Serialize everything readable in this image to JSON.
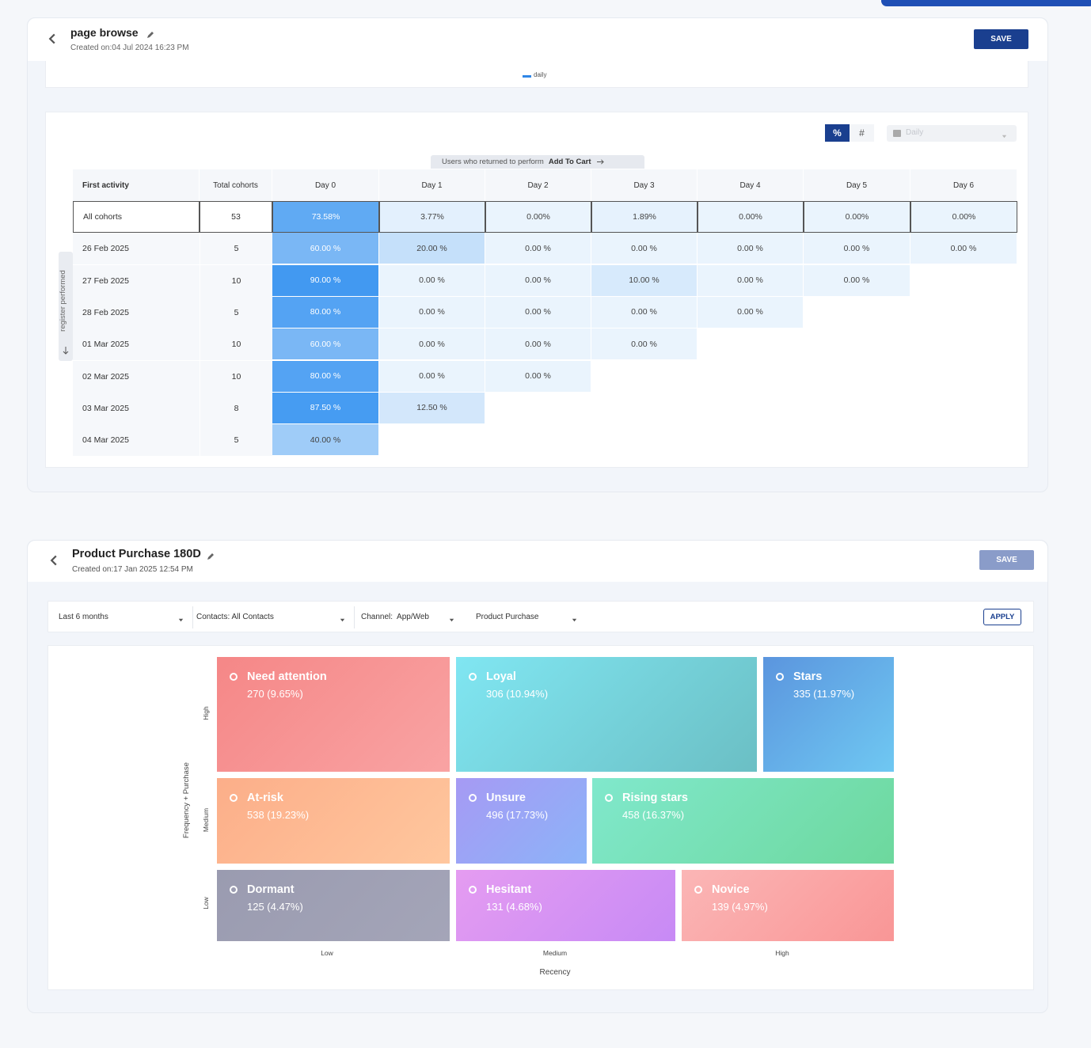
{
  "panel1": {
    "title": "page browse",
    "created": "Created on:04 Jul 2024 16:23 PM",
    "save": "SAVE",
    "legend": "daily",
    "toggle": [
      "%",
      "#"
    ],
    "dropdown": "Daily",
    "banner_prefix": "Users who returned to perform",
    "banner_event": "Add To Cart",
    "side_label": "register performed",
    "table": {
      "headers": [
        "First activity",
        "Total cohorts",
        "Day 0",
        "Day 1",
        "Day 2",
        "Day 3",
        "Day 4",
        "Day 5",
        "Day 6"
      ],
      "rows": [
        [
          "All cohorts",
          "53",
          "73.58%",
          "3.77%",
          "0.00%",
          "1.89%",
          "0.00%",
          "0.00%",
          "0.00%"
        ],
        [
          "26 Feb 2025",
          "5",
          "60.00 %",
          "20.00 %",
          "0.00 %",
          "0.00 %",
          "0.00 %",
          "0.00 %",
          "0.00 %"
        ],
        [
          "27 Feb 2025",
          "10",
          "90.00 %",
          "0.00 %",
          "0.00 %",
          "10.00 %",
          "0.00 %",
          "0.00 %"
        ],
        [
          "28 Feb 2025",
          "5",
          "80.00 %",
          "0.00 %",
          "0.00 %",
          "0.00 %",
          "0.00 %"
        ],
        [
          "01 Mar 2025",
          "10",
          "60.00 %",
          "0.00 %",
          "0.00 %",
          "0.00 %"
        ],
        [
          "02 Mar 2025",
          "10",
          "80.00 %",
          "0.00 %",
          "0.00 %"
        ],
        [
          "03 Mar 2025",
          "8",
          "87.50 %",
          "12.50 %"
        ],
        [
          "04 Mar 2025",
          "5",
          "40.00 %"
        ]
      ]
    }
  },
  "panel2": {
    "title": "Product Purchase 180D",
    "created": "Created on:17 Jan 2025 12:54 PM",
    "save": "SAVE",
    "filters": [
      "Last 6 months",
      "Contacts: All Contacts",
      "Channel:  App/Web",
      "Product Purchase"
    ],
    "apply": "APPLY",
    "y_axis_title": "Frequency + Purchase",
    "y_levels": [
      "High",
      "Medium",
      "Low"
    ],
    "x_levels": [
      "Low",
      "Medium",
      "High"
    ],
    "x_axis_title": "Recency",
    "segments": [
      {
        "name": "Need attention",
        "value": "270 (9.65%)"
      },
      {
        "name": "Loyal",
        "value": "306 (10.94%)"
      },
      {
        "name": "Stars",
        "value": "335 (11.97%)"
      },
      {
        "name": "At-risk",
        "value": "538 (19.23%)"
      },
      {
        "name": "Unsure",
        "value": "496 (17.73%)"
      },
      {
        "name": "Rising stars",
        "value": "458 (16.37%)"
      },
      {
        "name": "Dormant",
        "value": "125 (4.47%)"
      },
      {
        "name": "Hesitant",
        "value": "131 (4.68%)"
      },
      {
        "name": "Novice",
        "value": "139 (4.97%)"
      }
    ]
  }
}
